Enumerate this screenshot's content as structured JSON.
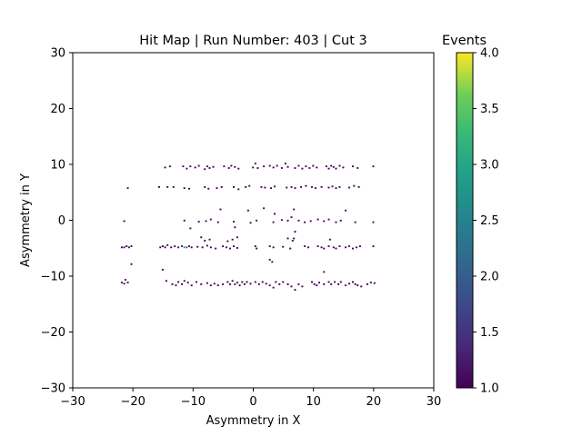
{
  "chart_data": {
    "type": "heatmap",
    "title": "Hit Map | Run Number: 403 | Cut 3",
    "xlabel": "Asymmetry in X",
    "ylabel": "Asymmetry in Y",
    "xlim": [
      -30,
      30
    ],
    "ylim": [
      -30,
      30
    ],
    "xticks": [
      -30,
      -20,
      -10,
      0,
      10,
      20,
      30
    ],
    "yticks": [
      -30,
      -20,
      -10,
      0,
      10,
      20,
      30
    ],
    "xtick_labels": [
      "−30",
      "−20",
      "−10",
      "0",
      "10",
      "20",
      "30"
    ],
    "ytick_labels": [
      "−30",
      "−20",
      "−10",
      "0",
      "10",
      "20",
      "30"
    ],
    "colorbar": {
      "label": "Events",
      "colormap": "viridis",
      "range": [
        1.0,
        4.0
      ],
      "ticks": [
        1.0,
        1.5,
        2.0,
        2.5,
        3.0,
        3.5,
        4.0
      ],
      "tick_labels": [
        "1.0",
        "1.5",
        "2.0",
        "2.5",
        "3.0",
        "3.5",
        "4.0"
      ]
    },
    "grid": false,
    "bin_size": 0.3,
    "cells": [
      [
        -22,
        -5,
        1
      ],
      [
        -21.6,
        -5,
        1
      ],
      [
        -21.2,
        -4.8,
        1
      ],
      [
        -20.8,
        -5,
        1
      ],
      [
        -20.4,
        -4.8,
        1
      ],
      [
        -22,
        -11.3,
        1
      ],
      [
        -21.6,
        -11.5,
        1
      ],
      [
        -21,
        -11.3,
        1
      ],
      [
        -21.4,
        -10.8,
        1
      ],
      [
        -21,
        5.6,
        1
      ],
      [
        -21.6,
        -0.3,
        1
      ],
      [
        -20.4,
        -8,
        1
      ],
      [
        -15.6,
        -5,
        1
      ],
      [
        -15.2,
        -4.8,
        1
      ],
      [
        -14.8,
        -5,
        1
      ],
      [
        -14.4,
        -4.6,
        1
      ],
      [
        -13.8,
        -5,
        1
      ],
      [
        -13.2,
        -4.8,
        1
      ],
      [
        -12.6,
        -5,
        1
      ],
      [
        -12,
        -4.8,
        1
      ],
      [
        -11.6,
        -5,
        3
      ],
      [
        -11.2,
        -5,
        2
      ],
      [
        -10.8,
        -4.8,
        1
      ],
      [
        -10.4,
        -5,
        1
      ],
      [
        -14.8,
        9.3,
        1
      ],
      [
        -14,
        9.5,
        1
      ],
      [
        -11.8,
        9.5,
        1
      ],
      [
        -11.2,
        9.1,
        1
      ],
      [
        -10.6,
        9.5,
        1
      ],
      [
        -9.8,
        9.3,
        1
      ],
      [
        -9.2,
        9.6,
        1
      ],
      [
        -8.2,
        9,
        1
      ],
      [
        -7.8,
        9.5,
        1
      ],
      [
        -7.4,
        9.2,
        1
      ],
      [
        -6.8,
        9.4,
        1
      ],
      [
        -5,
        9.5,
        1
      ],
      [
        -4.2,
        9.2,
        1
      ],
      [
        -3.8,
        9.6,
        1
      ],
      [
        -3.2,
        9.4,
        1
      ],
      [
        -2.6,
        9.1,
        1
      ],
      [
        -0.2,
        9.3,
        1
      ],
      [
        0.2,
        10,
        1
      ],
      [
        0.6,
        9.2,
        1
      ],
      [
        1.6,
        9.5,
        1
      ],
      [
        2.6,
        9.6,
        1
      ],
      [
        3.2,
        9.3,
        1
      ],
      [
        3.8,
        9.6,
        1
      ],
      [
        4.6,
        9.2,
        1
      ],
      [
        5.2,
        10,
        1
      ],
      [
        5.6,
        9.4,
        1
      ],
      [
        6.8,
        9.2,
        1
      ],
      [
        7.4,
        9.6,
        1
      ],
      [
        8,
        9.1,
        1
      ],
      [
        8.6,
        9.5,
        1
      ],
      [
        9.2,
        9.2,
        1
      ],
      [
        9.8,
        9.6,
        1
      ],
      [
        10.4,
        9.3,
        1
      ],
      [
        12,
        9.5,
        1
      ],
      [
        12.4,
        9.1,
        1
      ],
      [
        12.8,
        9.6,
        1
      ],
      [
        13.2,
        9.4,
        1
      ],
      [
        13.6,
        9.1,
        1
      ],
      [
        14.2,
        9.6,
        1
      ],
      [
        14.8,
        9.3,
        1
      ],
      [
        16.4,
        9.5,
        1
      ],
      [
        17.2,
        9.2,
        1
      ],
      [
        19.8,
        9.5,
        1
      ],
      [
        -15.8,
        5.8,
        1
      ],
      [
        -14.4,
        5.8,
        1
      ],
      [
        -13.4,
        5.8,
        1
      ],
      [
        -11.6,
        5.6,
        1
      ],
      [
        -10.8,
        5.5,
        1
      ],
      [
        -8.2,
        5.8,
        1
      ],
      [
        -7.6,
        5.5,
        1
      ],
      [
        -6.2,
        5.6,
        1
      ],
      [
        -5.4,
        5.8,
        1
      ],
      [
        -3.4,
        5.8,
        1
      ],
      [
        -2.6,
        5.4,
        1
      ],
      [
        -1.4,
        5.8,
        1
      ],
      [
        -0.8,
        6,
        1
      ],
      [
        1.2,
        5.8,
        1
      ],
      [
        1.8,
        5.7,
        1
      ],
      [
        2.8,
        5.6,
        1
      ],
      [
        3.4,
        5.9,
        1
      ],
      [
        5.4,
        5.7,
        1
      ],
      [
        6.2,
        5.8,
        1
      ],
      [
        6.8,
        5.6,
        1
      ],
      [
        7.8,
        5.8,
        1
      ],
      [
        8.6,
        6,
        1
      ],
      [
        9.6,
        5.8,
        1
      ],
      [
        10.2,
        5.6,
        1
      ],
      [
        11.2,
        5.8,
        1
      ],
      [
        12.4,
        5.7,
        1
      ],
      [
        13,
        5.9,
        1
      ],
      [
        13.6,
        5.6,
        1
      ],
      [
        14.2,
        5.8,
        1
      ],
      [
        15.8,
        5.7,
        1
      ],
      [
        16.6,
        6,
        1
      ],
      [
        17.4,
        5.8,
        1
      ],
      [
        -11.6,
        -0.2,
        1
      ],
      [
        -10.6,
        -1.6,
        1
      ],
      [
        -9.2,
        -0.4,
        1
      ],
      [
        -8,
        -0.3,
        1
      ],
      [
        -7.2,
        0,
        1
      ],
      [
        -6,
        -0.5,
        1
      ],
      [
        -5.6,
        1.8,
        1
      ],
      [
        -3.4,
        -0.4,
        1
      ],
      [
        -3.2,
        -1.4,
        1
      ],
      [
        -1,
        1.6,
        1
      ],
      [
        -0.6,
        -0.6,
        1
      ],
      [
        0.4,
        -0.2,
        1
      ],
      [
        1.6,
        2,
        1
      ],
      [
        3.2,
        -0.5,
        1
      ],
      [
        3.4,
        1,
        1
      ],
      [
        4.6,
        -0.1,
        1
      ],
      [
        5.6,
        -0.2,
        1
      ],
      [
        6.2,
        0.4,
        1
      ],
      [
        6.6,
        1.8,
        1
      ],
      [
        6.8,
        -2.2,
        1
      ],
      [
        7.4,
        -0.2,
        1
      ],
      [
        8.4,
        -0.5,
        1
      ],
      [
        9.4,
        -0.3,
        1
      ],
      [
        10.6,
        0,
        1
      ],
      [
        11.6,
        -0.3,
        1
      ],
      [
        12.4,
        0,
        1
      ],
      [
        13.6,
        -0.5,
        1
      ],
      [
        14.4,
        -0.2,
        1
      ],
      [
        15.2,
        1.6,
        1
      ],
      [
        16.8,
        -0.5,
        1
      ],
      [
        19.8,
        -0.5,
        1
      ],
      [
        -8.8,
        -3.2,
        1
      ],
      [
        -8.2,
        -3.8,
        1
      ],
      [
        -7.4,
        -3.6,
        1
      ],
      [
        -4.4,
        -3.9,
        1
      ],
      [
        -3.6,
        -3.6,
        1
      ],
      [
        -2.8,
        -3.2,
        1
      ],
      [
        6.4,
        -3.8,
        1
      ],
      [
        6.6,
        -3.4,
        1
      ],
      [
        12.6,
        -3.6,
        1
      ],
      [
        -9.4,
        -4.9,
        1
      ],
      [
        -8.6,
        -5,
        1
      ],
      [
        -7.8,
        -4.7,
        1
      ],
      [
        -7.2,
        -5,
        1
      ],
      [
        -6.4,
        -5.2,
        1
      ],
      [
        -5.2,
        -4.8,
        1
      ],
      [
        -4.6,
        -5,
        1
      ],
      [
        -4,
        -5.2,
        1
      ],
      [
        -3.4,
        -4.8,
        1
      ],
      [
        -2.8,
        -5.1,
        1
      ],
      [
        0.2,
        -4.8,
        1
      ],
      [
        0.4,
        -5.2,
        1
      ],
      [
        2.6,
        -4.8,
        1
      ],
      [
        3.2,
        -5,
        1
      ],
      [
        4.8,
        -4.9,
        1
      ],
      [
        6,
        -5.2,
        1
      ],
      [
        8.4,
        -4.8,
        1
      ],
      [
        9,
        -5,
        1
      ],
      [
        10.6,
        -4.8,
        1
      ],
      [
        11.2,
        -5,
        1
      ],
      [
        11.6,
        -5.2,
        1
      ],
      [
        12.4,
        -4.8,
        1
      ],
      [
        13.2,
        -5,
        1
      ],
      [
        13.6,
        -5.2,
        1
      ],
      [
        14.2,
        -4.8,
        1
      ],
      [
        15.2,
        -5,
        1
      ],
      [
        15.8,
        -4.8,
        1
      ],
      [
        16.4,
        -5.2,
        1
      ],
      [
        17,
        -5,
        1
      ],
      [
        17.6,
        -4.8,
        1
      ],
      [
        19.8,
        -4.8,
        1
      ],
      [
        -15.2,
        -9,
        1
      ],
      [
        2.6,
        -7.2,
        1
      ],
      [
        3,
        -7.6,
        1
      ],
      [
        5.6,
        -3.4,
        1
      ],
      [
        11.6,
        -9.4,
        1
      ],
      [
        -14.6,
        -11,
        1
      ],
      [
        -13.6,
        -11.6,
        1
      ],
      [
        -13,
        -11.8,
        1
      ],
      [
        -12.6,
        -11.2,
        1
      ],
      [
        -12,
        -11.6,
        1
      ],
      [
        -11.6,
        -11,
        1
      ],
      [
        -11,
        -11.3,
        1
      ],
      [
        -10.4,
        -11.8,
        1
      ],
      [
        -9.6,
        -11.2,
        1
      ],
      [
        -8.8,
        -11.6,
        1
      ],
      [
        -7.8,
        -11.4,
        1
      ],
      [
        -7.2,
        -11.8,
        1
      ],
      [
        -6.6,
        -11.5,
        1
      ],
      [
        -6,
        -11.8,
        1
      ],
      [
        -5.2,
        -11.6,
        1
      ],
      [
        -4.4,
        -11.2,
        1
      ],
      [
        -4,
        -11.6,
        1
      ],
      [
        -3.6,
        -11,
        1
      ],
      [
        -3.2,
        -11.6,
        1
      ],
      [
        -2.8,
        -11.3,
        1
      ],
      [
        -2.4,
        -11.8,
        1
      ],
      [
        -2,
        -11.2,
        1
      ],
      [
        -1.6,
        -11.6,
        1
      ],
      [
        -1.2,
        -11.2,
        1
      ],
      [
        -0.6,
        -11.5,
        1
      ],
      [
        0.2,
        -11.2,
        1
      ],
      [
        0.8,
        -11.6,
        1
      ],
      [
        1.4,
        -11.2,
        1
      ],
      [
        2,
        -11.5,
        1
      ],
      [
        2.6,
        -11.8,
        1
      ],
      [
        3.2,
        -12.2,
        1
      ],
      [
        3.6,
        -11.2,
        1
      ],
      [
        4.2,
        -11.6,
        1
      ],
      [
        4.8,
        -11.2,
        1
      ],
      [
        5.6,
        -11.6,
        1
      ],
      [
        6.2,
        -12,
        1
      ],
      [
        6.8,
        -12.6,
        1
      ],
      [
        7.4,
        -11.6,
        1
      ],
      [
        8,
        -12,
        1
      ],
      [
        9.6,
        -11.2,
        1
      ],
      [
        10,
        -11.6,
        1
      ],
      [
        10.4,
        -11.8,
        1
      ],
      [
        10.8,
        -11.3,
        1
      ],
      [
        11.6,
        -11.6,
        1
      ],
      [
        12.4,
        -11.2,
        1
      ],
      [
        12.8,
        -11.6,
        1
      ],
      [
        13.4,
        -11.2,
        1
      ],
      [
        14,
        -11.6,
        1
      ],
      [
        14.4,
        -11.2,
        1
      ],
      [
        15.2,
        -11.8,
        1
      ],
      [
        15.8,
        -11.5,
        1
      ],
      [
        16.4,
        -11.2,
        1
      ],
      [
        16.8,
        -11.6,
        1
      ],
      [
        17.2,
        -11.8,
        1
      ],
      [
        17.8,
        -12,
        1
      ],
      [
        18.8,
        -11.6,
        1
      ],
      [
        19.4,
        -11.3,
        1
      ],
      [
        20,
        -11.4,
        1
      ]
    ]
  }
}
